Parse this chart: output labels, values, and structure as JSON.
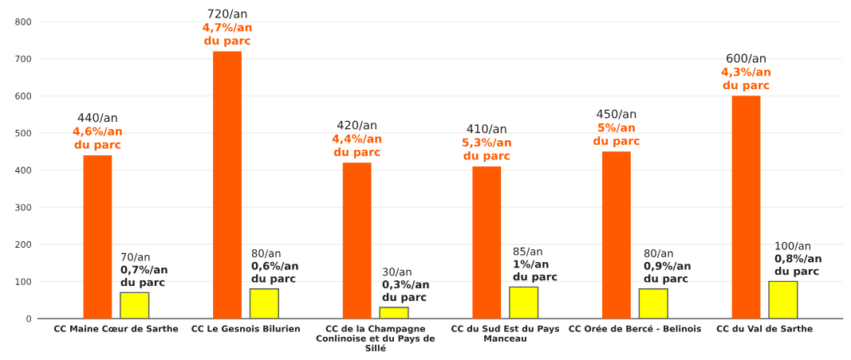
{
  "chart_data": {
    "type": "bar",
    "categories": [
      "CC Maine Cœur de Sarthe",
      "CC Le Gesnois Bilurien",
      "CC de la Champagne\nConlinoise et du Pays de\nSillé",
      "CC du Sud Est du Pays\nManceau",
      "CC Orée de Bercé - Belinois",
      "CC du Val de Sarthe"
    ],
    "series": [
      {
        "color": "#ff5a00",
        "values": [
          440,
          720,
          420,
          410,
          450,
          600
        ],
        "value_labels": [
          "440/an\n4,6%/an\ndu parc",
          "720/an\n4,7%/an\ndu parc",
          "420/an\n4,4%/an\ndu parc",
          "410/an\n5,3%/an\ndu parc",
          "450/an\n5%/an\ndu parc",
          "600/an\n4,3%/an\ndu parc"
        ]
      },
      {
        "color": "#ffff00",
        "values": [
          70,
          80,
          30,
          85,
          80,
          100
        ],
        "value_labels": [
          "70/an\n0,7%/an\ndu parc",
          "80/an\n0,6%/an\ndu parc",
          "30/an\n0,3%/an\ndu parc",
          "85/an\n1%/an\ndu parc",
          "80/an\n0,9%/an\ndu parc",
          "100/an\n0,8%/an\ndu parc"
        ]
      }
    ],
    "ylim": [
      0,
      800
    ],
    "yticks": [
      0,
      100,
      200,
      300,
      400,
      500,
      600,
      700,
      800
    ],
    "grid": "y",
    "legend": false
  }
}
